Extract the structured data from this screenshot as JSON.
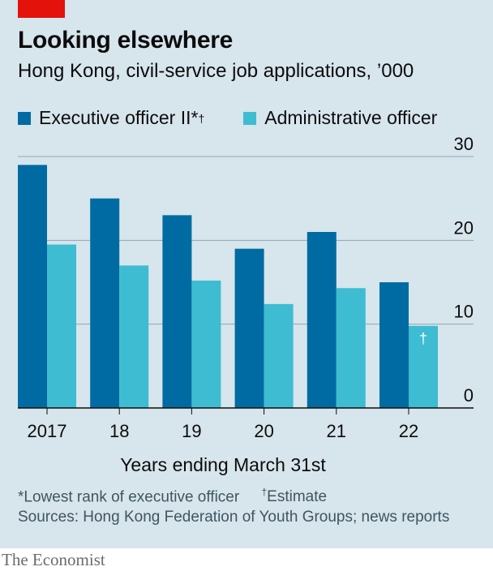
{
  "header": {
    "title": "Looking elsewhere",
    "subtitle": "Hong Kong, civil-service job applications, ’000"
  },
  "legend": {
    "series1": "Executive officer II*",
    "series1_mark": "†",
    "series2": "Administrative officer"
  },
  "footer": {
    "note_main": "*Lowest rank of executive officer",
    "note_mark": "†",
    "note_estimate": "Estimate",
    "source": "Sources: Hong Kong Federation of Youth Groups; news reports",
    "logo": "The Economist"
  },
  "colors": {
    "series1": "#006ba2",
    "series2": "#3ebcd2",
    "background": "#d7e5ec",
    "brand_red": "#e3120b"
  },
  "chart_data": {
    "type": "bar",
    "title": "Looking elsewhere",
    "subtitle": "Hong Kong, civil-service job applications, ’000",
    "xlabel": "Years ending March 31st",
    "ylabel": "",
    "categories": [
      "2017",
      "18",
      "19",
      "20",
      "21",
      "22"
    ],
    "series": [
      {
        "name": "Executive officer II*†",
        "values": [
          29,
          25,
          23,
          19,
          21,
          15
        ]
      },
      {
        "name": "Administrative officer",
        "values": [
          19.5,
          17,
          15.2,
          12.4,
          14.3,
          9.8
        ]
      }
    ],
    "annotations": [
      {
        "category": "22",
        "series": "Administrative officer",
        "text": "†"
      }
    ],
    "ylim": [
      0,
      30
    ],
    "yticks": [
      0,
      10,
      20,
      30
    ],
    "grid": true,
    "y_axis_side": "right",
    "legend_position": "top-left"
  }
}
